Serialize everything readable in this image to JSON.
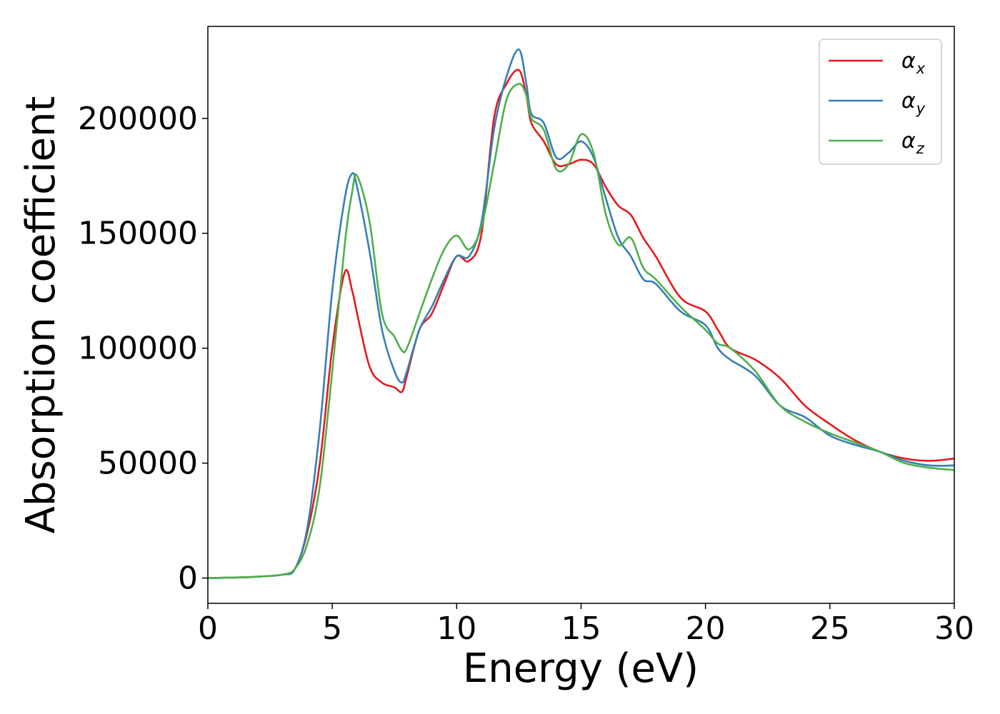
{
  "chart_data": {
    "type": "line",
    "xlabel": "Energy (eV)",
    "ylabel": "Absorption coefficient",
    "xlim": [
      0,
      30
    ],
    "ylim": [
      -11000,
      240000
    ],
    "xticks": [
      0,
      5,
      10,
      15,
      20,
      25,
      30
    ],
    "yticks": [
      0,
      50000,
      100000,
      150000,
      200000
    ],
    "grid": false,
    "legend_position": "top-right",
    "series": [
      {
        "name": "α",
        "subscript": "x",
        "color": "#e41a1c",
        "x": [
          0,
          1,
          2,
          3,
          3.5,
          4,
          4.5,
          5,
          5.5,
          5.8,
          6,
          6.5,
          7,
          7.5,
          7.8,
          8,
          8.5,
          9,
          9.5,
          10,
          10.5,
          11,
          11.5,
          12,
          12.5,
          12.8,
          13,
          13.5,
          14,
          14.5,
          15,
          15.5,
          16,
          16.5,
          17,
          17.5,
          18,
          19,
          20,
          20.5,
          21,
          22,
          23,
          24,
          25,
          26,
          27,
          28,
          29,
          30
        ],
        "y": [
          0,
          200,
          600,
          1500,
          4000,
          20000,
          50000,
          100000,
          133000,
          125000,
          115000,
          92000,
          85000,
          83000,
          81000,
          88000,
          108000,
          115000,
          128000,
          140000,
          138000,
          150000,
          200000,
          215000,
          221000,
          210000,
          198000,
          190000,
          180000,
          180000,
          182000,
          180000,
          170000,
          162000,
          158000,
          148000,
          140000,
          122000,
          116000,
          108000,
          100000,
          95000,
          87000,
          75000,
          67000,
          60000,
          55000,
          52000,
          51000,
          52000
        ]
      },
      {
        "name": "α",
        "subscript": "y",
        "color": "#377eb8",
        "x": [
          0,
          1,
          2,
          3,
          3.5,
          4,
          4.5,
          5,
          5.5,
          5.8,
          6,
          6.5,
          7,
          7.5,
          7.8,
          8,
          8.5,
          9,
          9.5,
          10,
          10.5,
          11,
          11.5,
          12,
          12.5,
          12.8,
          13,
          13.5,
          14,
          14.5,
          15,
          15.5,
          16,
          16.5,
          17,
          17.5,
          18,
          19,
          20,
          20.5,
          21,
          22,
          23,
          24,
          25,
          26,
          27,
          28,
          29,
          30
        ],
        "y": [
          0,
          200,
          600,
          1500,
          4000,
          22000,
          65000,
          125000,
          165000,
          176000,
          170000,
          142000,
          108000,
          90000,
          85000,
          90000,
          108000,
          118000,
          130000,
          140000,
          140000,
          155000,
          195000,
          218000,
          230000,
          215000,
          202000,
          198000,
          183000,
          185000,
          190000,
          183000,
          165000,
          148000,
          140000,
          130000,
          128000,
          116000,
          110000,
          100000,
          95000,
          88000,
          75000,
          70000,
          62000,
          58000,
          55000,
          51000,
          49000,
          49000
        ]
      },
      {
        "name": "α",
        "subscript": "z",
        "color": "#4daf4a",
        "x": [
          0,
          1,
          2,
          3,
          3.5,
          4,
          4.5,
          5,
          5.5,
          5.8,
          6,
          6.5,
          7,
          7.5,
          7.8,
          8,
          8.5,
          9,
          9.5,
          10,
          10.5,
          11,
          11.5,
          12,
          12.5,
          12.8,
          13,
          13.5,
          14,
          14.5,
          15,
          15.5,
          16,
          16.5,
          17,
          17.5,
          18,
          19,
          20,
          20.5,
          21,
          22,
          23,
          24,
          25,
          26,
          27,
          28,
          29,
          30
        ],
        "y": [
          0,
          200,
          600,
          1500,
          4000,
          15000,
          40000,
          90000,
          145000,
          168000,
          175000,
          155000,
          115000,
          105000,
          99000,
          100000,
          115000,
          130000,
          143000,
          149000,
          143000,
          153000,
          180000,
          208000,
          215000,
          210000,
          200000,
          195000,
          178000,
          180000,
          193000,
          185000,
          158000,
          145000,
          148000,
          135000,
          130000,
          118000,
          108000,
          102000,
          100000,
          90000,
          75000,
          68000,
          63000,
          59000,
          55000,
          50000,
          48000,
          47000
        ]
      }
    ]
  }
}
